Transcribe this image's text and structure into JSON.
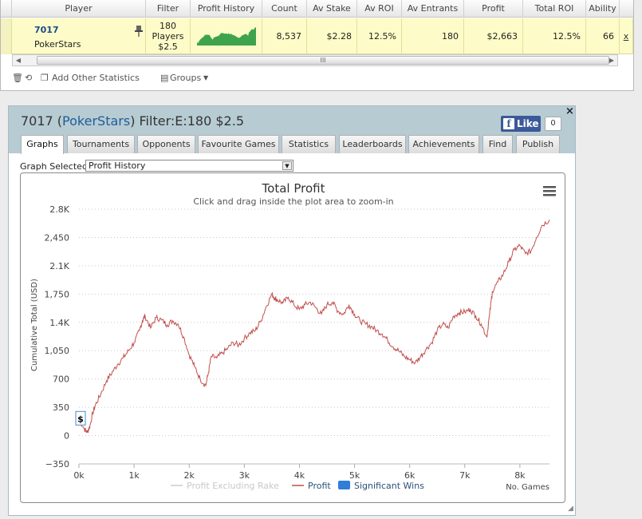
{
  "grid": {
    "headers": [
      "Player",
      "Filter",
      "Profit History",
      "Count",
      "Av Stake",
      "Av ROI",
      "Av Entrants",
      "Profit",
      "Total ROI",
      "Ability"
    ],
    "row": {
      "player_name": "7017",
      "site": "PokerStars",
      "filter_line1": "180",
      "filter_line2": "Players",
      "filter_line3": "$2.5",
      "count": "8,537",
      "av_stake": "$2.28",
      "av_roi": "12.5%",
      "av_entrants": "180",
      "profit": "$2,663",
      "total_roi": "12.5%",
      "ability": "66",
      "remove": "x"
    },
    "scroll_grip": "III"
  },
  "toolbar": {
    "add_stats": "Add Other Statistics",
    "groups": "Groups"
  },
  "panel": {
    "title_player": "7017 (",
    "title_site": "PokerStars",
    "title_filter": ") Filter:E:180 $2.5",
    "close": "×",
    "fb_like": "Like",
    "fb_count": "0",
    "tabs": [
      "Graphs",
      "Tournaments",
      "Opponents",
      "Favourite Games",
      "Statistics",
      "Leaderboards",
      "Achievements",
      "Find",
      "Publish"
    ],
    "graph_selected_label": "Graph Selected:",
    "graph_selected_value": "Profit History"
  },
  "colors": {
    "profit_line": "#c0504d",
    "excluding_rake_line": "#cccccc",
    "significant_wins": "#2f7ed8",
    "panel_header": "#b7cbd3",
    "row_highlight": "#fdfcc8"
  },
  "chart_data": {
    "type": "line",
    "title": "Total Profit",
    "subtitle": "Click and drag inside the plot area to zoom-in",
    "ylabel": "Cumulative Total (USD)",
    "xlabel": "No. Games",
    "ylim": [
      -350,
      2800
    ],
    "xlim": [
      0,
      8537
    ],
    "y_ticks": [
      "2.8K",
      "2,450",
      "2.1K",
      "1,750",
      "1.4K",
      "1,050",
      "700",
      "350",
      "0",
      "−350"
    ],
    "x_ticks": [
      "0k",
      "1k",
      "2k",
      "3k",
      "4k",
      "5k",
      "6k",
      "7k",
      "8k"
    ],
    "grid": true,
    "legend": [
      "Profit Excluding Rake",
      "Profit",
      "Significant Wins"
    ],
    "legend_position": "bottom",
    "annotation": "$",
    "series": [
      {
        "name": "Profit",
        "x": [
          0,
          100,
          150,
          200,
          250,
          300,
          400,
          500,
          600,
          700,
          800,
          900,
          1000,
          1100,
          1150,
          1200,
          1300,
          1400,
          1500,
          1600,
          1700,
          1800,
          1900,
          2000,
          2100,
          2200,
          2300,
          2350,
          2400,
          2500,
          2600,
          2700,
          2800,
          2900,
          3000,
          3100,
          3200,
          3300,
          3400,
          3500,
          3550,
          3600,
          3700,
          3800,
          3900,
          4000,
          4100,
          4200,
          4300,
          4400,
          4500,
          4600,
          4700,
          4800,
          4900,
          5000,
          5100,
          5200,
          5300,
          5400,
          5500,
          5600,
          5700,
          5800,
          5900,
          6000,
          6100,
          6200,
          6300,
          6400,
          6500,
          6600,
          6700,
          6800,
          6900,
          7000,
          7100,
          7200,
          7300,
          7400,
          7450,
          7500,
          7600,
          7700,
          7800,
          7900,
          8000,
          8100,
          8200,
          8300,
          8400,
          8537
        ],
        "y": [
          200,
          80,
          40,
          120,
          280,
          380,
          520,
          680,
          780,
          880,
          960,
          1050,
          1150,
          1300,
          1420,
          1480,
          1330,
          1460,
          1430,
          1370,
          1420,
          1380,
          1220,
          1000,
          850,
          700,
          620,
          780,
          980,
          960,
          1020,
          1080,
          1150,
          1120,
          1200,
          1270,
          1300,
          1420,
          1600,
          1750,
          1700,
          1680,
          1640,
          1710,
          1620,
          1560,
          1620,
          1650,
          1580,
          1500,
          1620,
          1650,
          1540,
          1500,
          1620,
          1500,
          1420,
          1380,
          1350,
          1300,
          1260,
          1180,
          1100,
          1050,
          980,
          940,
          900,
          980,
          1070,
          1150,
          1300,
          1380,
          1330,
          1480,
          1520,
          1530,
          1560,
          1480,
          1380,
          1220,
          1500,
          1780,
          1900,
          2000,
          2150,
          2300,
          2350,
          2250,
          2280,
          2450,
          2600,
          2670
        ]
      }
    ]
  }
}
